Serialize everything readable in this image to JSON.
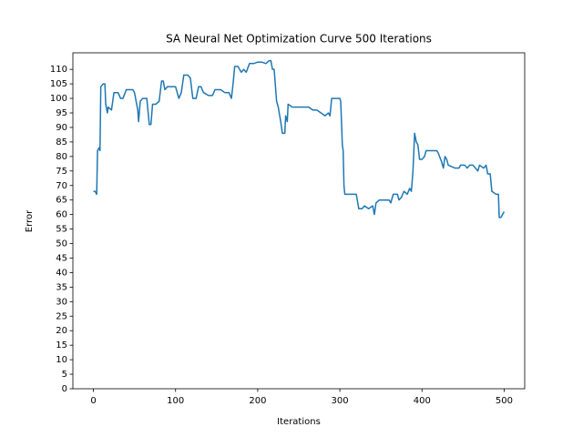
{
  "chart_data": {
    "type": "line",
    "title": "SA Neural Net Optimization Curve 500 Iterations",
    "xlabel": "Iterations",
    "ylabel": "Error",
    "xlim": [
      -25,
      525
    ],
    "ylim": [
      0,
      115.7
    ],
    "xticks": [
      0,
      100,
      200,
      300,
      400,
      500
    ],
    "yticks": [
      0,
      5,
      10,
      15,
      20,
      25,
      30,
      35,
      40,
      45,
      50,
      55,
      60,
      65,
      70,
      75,
      80,
      85,
      90,
      95,
      100,
      105,
      110
    ],
    "series": [
      {
        "color": "#1f77b4",
        "x": [
          0,
          2,
          4,
          5,
          7,
          8,
          9,
          12,
          14,
          15,
          17,
          18,
          22,
          25,
          30,
          33,
          36,
          40,
          45,
          48,
          50,
          54,
          55,
          57,
          60,
          65,
          67,
          68,
          70,
          72,
          76,
          80,
          83,
          85,
          87,
          90,
          100,
          104,
          107,
          110,
          115,
          118,
          121,
          125,
          128,
          131,
          134,
          140,
          145,
          148,
          155,
          160,
          165,
          168,
          170,
          172,
          176,
          180,
          183,
          186,
          190,
          195,
          200,
          205,
          210,
          214,
          216,
          218,
          220,
          223,
          225,
          228,
          230,
          233,
          234,
          236,
          237,
          242,
          248,
          255,
          262,
          267,
          272,
          277,
          282,
          286,
          288,
          290,
          295,
          300,
          301,
          302,
          303,
          304,
          305,
          306,
          310,
          320,
          323,
          327,
          330,
          335,
          340,
          342,
          344,
          348,
          355,
          360,
          362,
          365,
          370,
          372,
          375,
          378,
          382,
          385,
          387,
          389,
          391,
          393,
          395,
          397,
          400,
          403,
          405,
          410,
          415,
          418,
          420,
          424,
          426,
          428,
          430,
          432,
          440,
          445,
          447,
          452,
          455,
          458,
          462,
          465,
          468,
          470,
          475,
          478,
          480,
          483,
          485,
          490,
          493,
          494,
          496,
          498,
          500
        ],
        "values": [
          68,
          68,
          67,
          82,
          83,
          82,
          104,
          105,
          105,
          98,
          95,
          97,
          96,
          102,
          102,
          100,
          100,
          103,
          103,
          103,
          102,
          96,
          92,
          99,
          100,
          100,
          94,
          91,
          91,
          98,
          98,
          99,
          106,
          106,
          103,
          104,
          104,
          100,
          102,
          108,
          108,
          107,
          100,
          100,
          104,
          104,
          102,
          101,
          101,
          103,
          103,
          102,
          102,
          100,
          105,
          111,
          111,
          109,
          110,
          109,
          112,
          112,
          112.5,
          112.5,
          112,
          113,
          113,
          110,
          110,
          99,
          97,
          92,
          88,
          88,
          94,
          92,
          98,
          97,
          97,
          97,
          97,
          96,
          96,
          95,
          94,
          95,
          94,
          100,
          100,
          100,
          99,
          92,
          84,
          82,
          70,
          67,
          67,
          67,
          62,
          62,
          63,
          62,
          63,
          60,
          64,
          65,
          65,
          65,
          64,
          67,
          67,
          65,
          66,
          68,
          67,
          69,
          68,
          75,
          88,
          85,
          84,
          79,
          79,
          80,
          82,
          82,
          82,
          82,
          81,
          78,
          76,
          80,
          79,
          77,
          76,
          76,
          77,
          77,
          76,
          77,
          77,
          76,
          75,
          77,
          76,
          77,
          74,
          74,
          68,
          67,
          67,
          59,
          59,
          60,
          61
        ]
      }
    ]
  }
}
